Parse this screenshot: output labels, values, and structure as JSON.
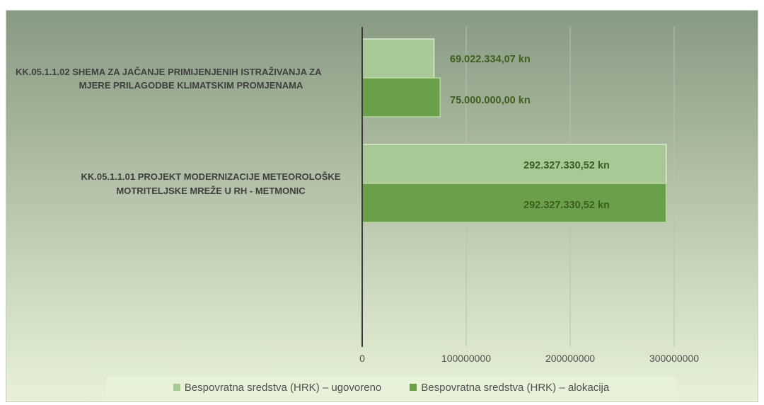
{
  "chart_data": {
    "type": "bar",
    "orientation": "horizontal",
    "categories": [
      [
        "KK.05.1.1.02 SHEMA ZA JAČANJE PRIMIJENJENIH ISTRAŽIVANJA ZA",
        "MJERE PRILAGODBE KLIMATSKIM PROMJENAMA"
      ],
      [
        "KK.05.1.1.01 PROJEKT MODERNIZACIJE METEOROLOŠKE",
        "MOTRITELJSKE  MREŽE U RH - METMONIC"
      ]
    ],
    "series": [
      {
        "name": "Bespovratna sredstva (HRK) – ugovoreno",
        "color": "#a8c896",
        "values": [
          69022334.07,
          292327330.52
        ],
        "labels": [
          "69.022.334,07 kn",
          "292.327.330,52 kn"
        ]
      },
      {
        "name": "Bespovratna sredstva (HRK)  – alokacija",
        "color": "#6aa04a",
        "values": [
          75000000.0,
          292327330.52
        ],
        "labels": [
          "75.000.000,00 kn",
          "292.327.330,52 kn"
        ]
      }
    ],
    "xlim": [
      0,
      300000000
    ],
    "xticks": [
      0,
      100000000,
      200000000,
      300000000
    ],
    "xtick_labels": [
      "0",
      "100000000",
      "200000000",
      "300000000"
    ],
    "grid": true,
    "legend_position": "bottom"
  }
}
